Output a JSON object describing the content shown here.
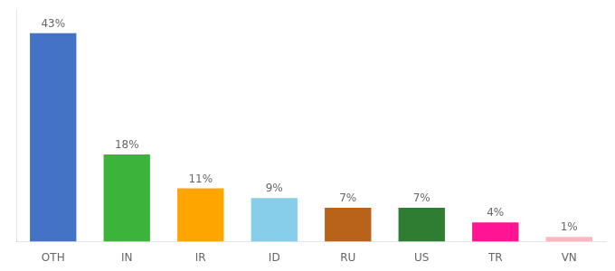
{
  "chart_data": {
    "type": "bar",
    "categories": [
      "OTH",
      "IN",
      "IR",
      "ID",
      "RU",
      "US",
      "TR",
      "VN"
    ],
    "values": [
      43,
      18,
      11,
      9,
      7,
      7,
      4,
      1
    ],
    "value_labels": [
      "43%",
      "18%",
      "11%",
      "9%",
      "7%",
      "7%",
      "4%",
      "1%"
    ],
    "data_labels": true,
    "colors": [
      "#4472c4",
      "#3cb43c",
      "#ffa500",
      "#87ceeb",
      "#b8621a",
      "#2e7d32",
      "#ff1493",
      "#ffb6c1"
    ],
    "ylim": [
      0,
      48
    ],
    "grid": false,
    "tick_labels": "x"
  }
}
